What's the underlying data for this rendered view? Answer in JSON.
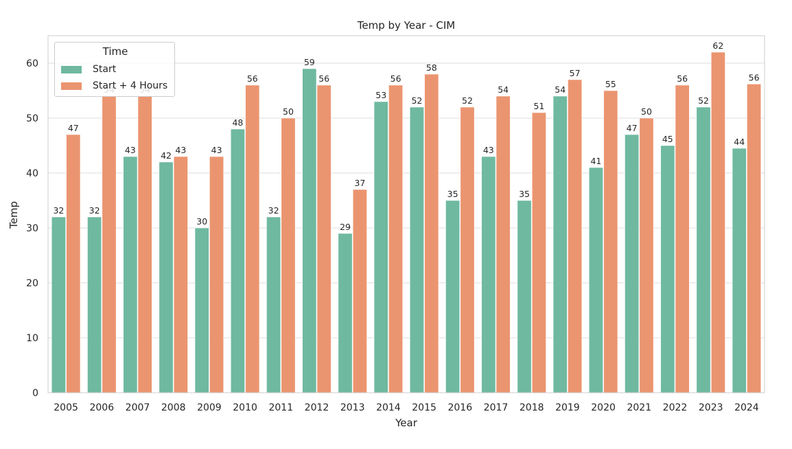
{
  "chart_data": {
    "type": "bar",
    "title": "Temp by Year - CIM",
    "xlabel": "Year",
    "ylabel": "Temp",
    "ylim": [
      0,
      65
    ],
    "yticks": [
      0,
      10,
      20,
      30,
      40,
      50,
      60
    ],
    "grid": true,
    "legend": {
      "title": "Time",
      "placement": "top-left"
    },
    "categories": [
      "2005",
      "2006",
      "2007",
      "2008",
      "2009",
      "2010",
      "2011",
      "2012",
      "2013",
      "2014",
      "2015",
      "2016",
      "2017",
      "2018",
      "2019",
      "2020",
      "2021",
      "2022",
      "2023",
      "2024"
    ],
    "series": [
      {
        "name": "Start",
        "color": "#6fb9a0",
        "values": [
          32,
          32,
          43,
          42,
          30,
          48,
          32,
          59,
          29,
          53,
          52,
          35,
          43,
          35,
          54,
          41,
          47,
          45,
          52,
          44.5
        ],
        "labels": [
          "32",
          "32",
          "43",
          "42",
          "30",
          "48",
          "32",
          "59",
          "29",
          "53",
          "52",
          "35",
          "43",
          "35",
          "54",
          "41",
          "47",
          "45",
          "52",
          "44"
        ]
      },
      {
        "name": "Start + 4 Hours",
        "color": "#eb9570",
        "values": [
          47,
          54,
          54,
          43,
          43,
          56,
          50,
          56,
          37,
          56,
          58,
          52,
          54,
          51,
          57,
          55,
          50,
          56,
          62,
          56.2
        ],
        "labels": [
          "47",
          "54",
          "54",
          "43",
          "43",
          "56",
          "50",
          "56",
          "37",
          "56",
          "58",
          "52",
          "54",
          "51",
          "57",
          "55",
          "50",
          "56",
          "62",
          "56"
        ]
      }
    ]
  }
}
